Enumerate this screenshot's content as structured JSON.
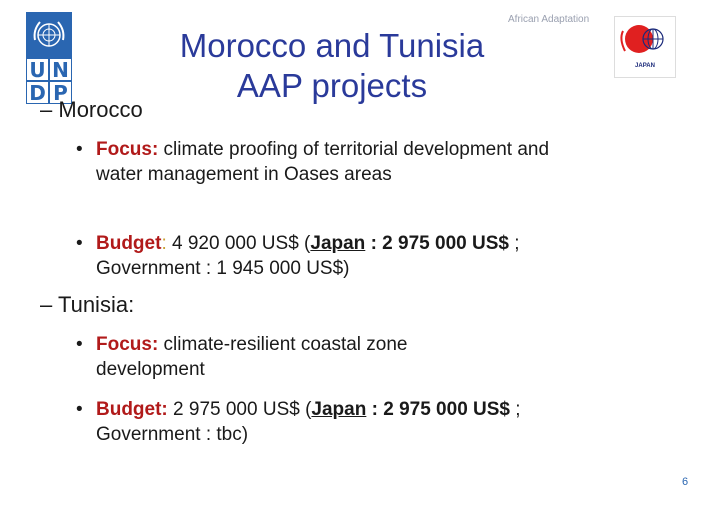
{
  "title": "Morocco and Tunisia AAP projects",
  "title_line1": "Morocco and Tunisia",
  "title_line2": "AAP projects",
  "watermark_text": "African Adaptation",
  "japan_logo_text": "JAPAN",
  "undp_letters": [
    "U",
    "N",
    "D",
    "P"
  ],
  "sections": [
    {
      "dash": "–",
      "heading": "Morocco",
      "bullets": [
        {
          "label": "Focus:",
          "text": " climate proofing of territorial development and water management in Oases areas"
        },
        {
          "label": "Budget",
          "colon": ":",
          "text": " 4 920 000 US$  (",
          "link": "Japan",
          "after": " : 2 975 000 US$",
          "rest": " ; Government : 1 945 000 US$)"
        }
      ]
    },
    {
      "dash": "–",
      "heading": "Tunisia",
      "heading_suffix": ":",
      "bullets": [
        {
          "label": "Focus:",
          "text": " climate-resilient coastal zone development"
        },
        {
          "label": "Budget:",
          "text": " 2 975 000 US$  (",
          "link": "Japan",
          "after": " : 2 975 000 US$",
          "rest": " ; Government : tbc)"
        }
      ]
    }
  ],
  "page_number": "6",
  "colors": {
    "title": "#2a3a9a",
    "undp_blue": "#2a66b1",
    "accent_red": "#b11a1a",
    "accent_gold": "#c9a235"
  }
}
